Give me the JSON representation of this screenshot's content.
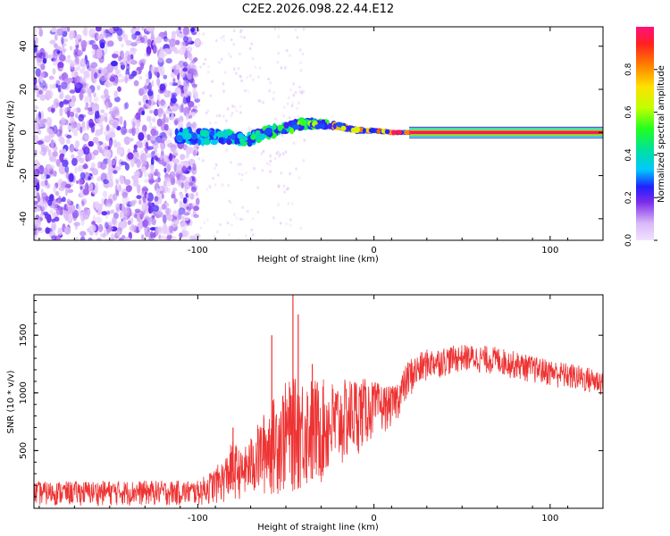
{
  "chart_data": [
    {
      "type": "heatmap",
      "title": "C2E2.2026.098.22.44.E12",
      "xlabel": "Height of straight line (km)",
      "ylabel": "Frequency (Hz)",
      "xlim": [
        -193,
        130
      ],
      "ylim": [
        -50,
        49
      ],
      "x_ticks": [
        -100,
        0,
        100
      ],
      "y_ticks": [
        -40,
        -20,
        0,
        20,
        40
      ],
      "x_tick_labels": [
        "-100",
        "0",
        "100"
      ],
      "y_tick_labels": [
        "-40",
        "-20",
        "0",
        "20",
        "40"
      ],
      "noise_region_x": [
        -193,
        -100
      ],
      "signal_start_x": -112,
      "carrier_start_x": 20,
      "carrier_frequency": 0,
      "carrier_amplitude": 1.0,
      "track": [
        {
          "x": -112,
          "f": -1,
          "a": 0.35
        },
        {
          "x": -100,
          "f": -2,
          "a": 0.4
        },
        {
          "x": -85,
          "f": -2,
          "a": 0.45
        },
        {
          "x": -70,
          "f": -3,
          "a": 0.48
        },
        {
          "x": -60,
          "f": 0,
          "a": 0.5
        },
        {
          "x": -50,
          "f": 2,
          "a": 0.55
        },
        {
          "x": -40,
          "f": 4,
          "a": 0.6
        },
        {
          "x": -30,
          "f": 4,
          "a": 0.7
        },
        {
          "x": -20,
          "f": 3,
          "a": 0.8
        },
        {
          "x": -10,
          "f": 1,
          "a": 0.88
        },
        {
          "x": 0,
          "f": 1,
          "a": 0.93
        },
        {
          "x": 10,
          "f": 0,
          "a": 0.97
        },
        {
          "x": 20,
          "f": 0,
          "a": 1.0
        }
      ],
      "colorbar": {
        "label": "Normalized spectral amplitude",
        "range": [
          0,
          1
        ],
        "ticks": [
          0,
          0.2,
          0.4,
          0.6,
          0.8
        ],
        "tick_labels": [
          "0.0",
          "0.2",
          "0.4",
          "0.6",
          "0.8"
        ]
      }
    },
    {
      "type": "line",
      "xlabel": "Height of straight line (km)",
      "ylabel": "SNR (10 * v/v)",
      "xlim": [
        -193,
        130
      ],
      "ylim": [
        0,
        1850
      ],
      "x_ticks": [
        -100,
        0,
        100
      ],
      "y_ticks": [
        500,
        1000,
        1500
      ],
      "x_tick_labels": [
        "-100",
        "0",
        "100"
      ],
      "y_tick_labels": [
        "500",
        "1000",
        "1500"
      ],
      "series_color": "#ee3333",
      "envelope": [
        {
          "x": -193,
          "low": 20,
          "high": 230
        },
        {
          "x": -150,
          "low": 20,
          "high": 240
        },
        {
          "x": -100,
          "low": 20,
          "high": 240
        },
        {
          "x": -92,
          "low": 30,
          "high": 330
        },
        {
          "x": -85,
          "low": 40,
          "high": 430
        },
        {
          "x": -80,
          "low": 60,
          "high": 600
        },
        {
          "x": -75,
          "low": 80,
          "high": 480
        },
        {
          "x": -70,
          "low": 80,
          "high": 620
        },
        {
          "x": -60,
          "low": 90,
          "high": 900
        },
        {
          "x": -50,
          "low": 110,
          "high": 1100
        },
        {
          "x": -40,
          "low": 130,
          "high": 1150
        },
        {
          "x": -30,
          "low": 180,
          "high": 1120
        },
        {
          "x": -20,
          "low": 300,
          "high": 1100
        },
        {
          "x": -10,
          "low": 450,
          "high": 1150
        },
        {
          "x": 0,
          "low": 600,
          "high": 1100
        },
        {
          "x": 10,
          "low": 700,
          "high": 1050
        },
        {
          "x": 15,
          "low": 800,
          "high": 1150
        },
        {
          "x": 20,
          "low": 950,
          "high": 1300
        },
        {
          "x": 30,
          "low": 1100,
          "high": 1380
        },
        {
          "x": 50,
          "low": 1180,
          "high": 1420
        },
        {
          "x": 70,
          "low": 1150,
          "high": 1400
        },
        {
          "x": 90,
          "low": 1080,
          "high": 1320
        },
        {
          "x": 110,
          "low": 1020,
          "high": 1260
        },
        {
          "x": 130,
          "low": 960,
          "high": 1200
        }
      ],
      "spikes": [
        {
          "x": -46,
          "y": 1850
        },
        {
          "x": -43,
          "y": 1680
        },
        {
          "x": -58,
          "y": 1500
        },
        {
          "x": -35,
          "y": 1250
        },
        {
          "x": -80,
          "y": 700
        },
        {
          "x": 12,
          "y": 180
        },
        {
          "x": 10,
          "y": 350
        }
      ]
    }
  ]
}
